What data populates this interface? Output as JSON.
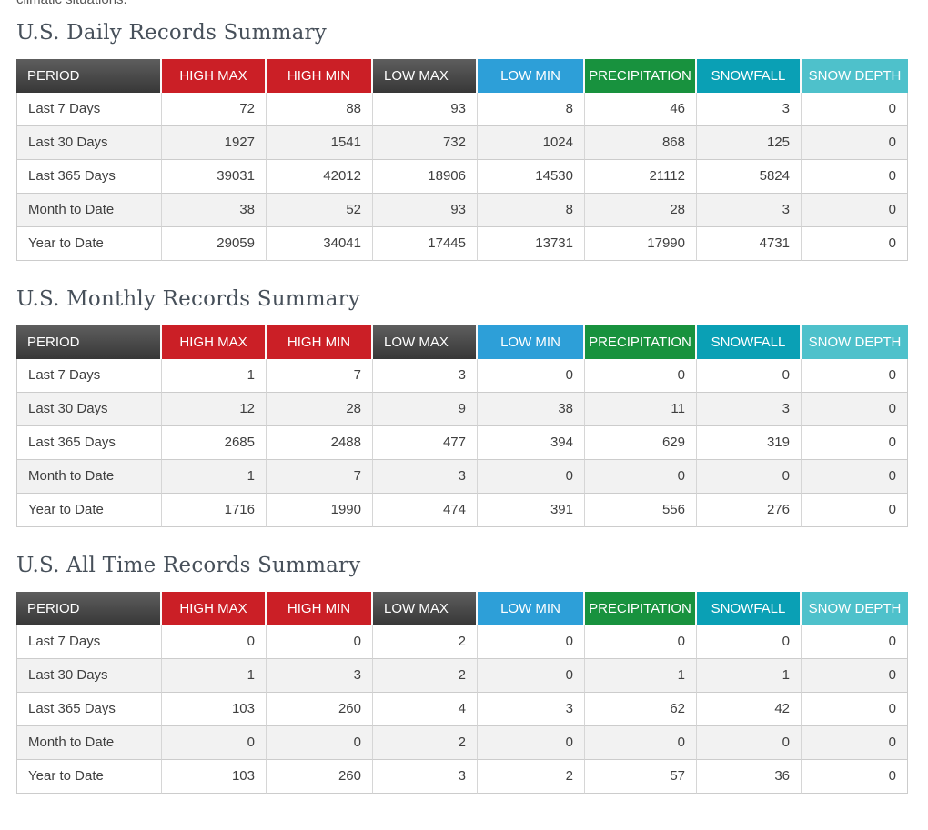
{
  "page": {
    "intro_text_fragment": "climatic situations."
  },
  "columns": [
    {
      "label": "PERIOD",
      "key": "period",
      "color": "#4a4a4a",
      "style": "dark"
    },
    {
      "label": "HIGH MAX",
      "key": "high-max",
      "color": "#cb1f26",
      "style": "flat"
    },
    {
      "label": "HIGH MIN",
      "key": "high-min",
      "color": "#cb1f26",
      "style": "flat"
    },
    {
      "label": "LOW MAX",
      "key": "low-max",
      "color": "#4a4a4a",
      "style": "dark"
    },
    {
      "label": "LOW MIN",
      "key": "low-min",
      "color": "#2d9fd8",
      "style": "flat"
    },
    {
      "label": "PRECIPITATION",
      "key": "precipitation",
      "color": "#18923e",
      "style": "flat"
    },
    {
      "label": "SNOWFALL",
      "key": "snowfall",
      "color": "#0aa0b5",
      "style": "flat"
    },
    {
      "label": "SNOW DEPTH",
      "key": "snow-depth",
      "color": "#4ec1cb",
      "style": "flat"
    }
  ],
  "tables": [
    {
      "title": "U.S. Daily Records Summary",
      "rows": [
        {
          "period": "Last 7 Days",
          "values": [
            "72",
            "88",
            "93",
            "8",
            "46",
            "3",
            "0"
          ]
        },
        {
          "period": "Last 30 Days",
          "values": [
            "1927",
            "1541",
            "732",
            "1024",
            "868",
            "125",
            "0"
          ]
        },
        {
          "period": "Last 365 Days",
          "values": [
            "39031",
            "42012",
            "18906",
            "14530",
            "21112",
            "5824",
            "0"
          ]
        },
        {
          "period": "Month to Date",
          "values": [
            "38",
            "52",
            "93",
            "8",
            "28",
            "3",
            "0"
          ]
        },
        {
          "period": "Year to Date",
          "values": [
            "29059",
            "34041",
            "17445",
            "13731",
            "17990",
            "4731",
            "0"
          ]
        }
      ]
    },
    {
      "title": "U.S. Monthly Records Summary",
      "rows": [
        {
          "period": "Last 7 Days",
          "values": [
            "1",
            "7",
            "3",
            "0",
            "0",
            "0",
            "0"
          ]
        },
        {
          "period": "Last 30 Days",
          "values": [
            "12",
            "28",
            "9",
            "38",
            "11",
            "3",
            "0"
          ]
        },
        {
          "period": "Last 365 Days",
          "values": [
            "2685",
            "2488",
            "477",
            "394",
            "629",
            "319",
            "0"
          ]
        },
        {
          "period": "Month to Date",
          "values": [
            "1",
            "7",
            "3",
            "0",
            "0",
            "0",
            "0"
          ]
        },
        {
          "period": "Year to Date",
          "values": [
            "1716",
            "1990",
            "474",
            "391",
            "556",
            "276",
            "0"
          ]
        }
      ]
    },
    {
      "title": "U.S. All Time Records Summary",
      "rows": [
        {
          "period": "Last 7 Days",
          "values": [
            "0",
            "0",
            "2",
            "0",
            "0",
            "0",
            "0"
          ]
        },
        {
          "period": "Last 30 Days",
          "values": [
            "1",
            "3",
            "2",
            "0",
            "1",
            "1",
            "0"
          ]
        },
        {
          "period": "Last 365 Days",
          "values": [
            "103",
            "260",
            "4",
            "3",
            "62",
            "42",
            "0"
          ]
        },
        {
          "period": "Month to Date",
          "values": [
            "0",
            "0",
            "2",
            "0",
            "0",
            "0",
            "0"
          ]
        },
        {
          "period": "Year to Date",
          "values": [
            "103",
            "260",
            "3",
            "2",
            "57",
            "36",
            "0"
          ]
        }
      ]
    }
  ]
}
